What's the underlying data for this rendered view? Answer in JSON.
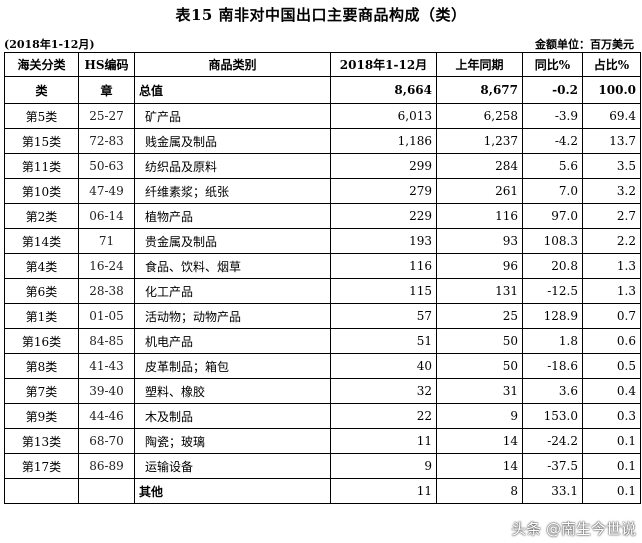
{
  "title": "表15  南非对中国出口主要商品构成（类）",
  "period": "(2018年1-12月)",
  "unit": "金额单位：百万美元",
  "headers": [
    "海关分类",
    "HS编码",
    "商品类别",
    "2018年1-12月",
    "上年同期",
    "同比%",
    "占比%"
  ],
  "subheaders": [
    "类",
    "章",
    "总值",
    "8,664",
    "8,677",
    "-0.2",
    "100.0"
  ],
  "rows": [
    [
      "第5类",
      "25-27",
      "矿产品",
      "6,013",
      "6,258",
      "-3.9",
      "69.4"
    ],
    [
      "第15类",
      "72-83",
      "贱金属及制品",
      "1,186",
      "1,237",
      "-4.2",
      "13.7"
    ],
    [
      "第11类",
      "50-63",
      "纺织品及原料",
      "299",
      "284",
      "5.6",
      "3.5"
    ],
    [
      "第10类",
      "47-49",
      "纤维素浆；纸张",
      "279",
      "261",
      "7.0",
      "3.2"
    ],
    [
      "第2类",
      "06-14",
      "植物产品",
      "229",
      "116",
      "97.0",
      "2.7"
    ],
    [
      "第14类",
      "71",
      "贵金属及制品",
      "193",
      "93",
      "108.3",
      "2.2"
    ],
    [
      "第4类",
      "16-24",
      "食品、饮料、烟草",
      "116",
      "96",
      "20.8",
      "1.3"
    ],
    [
      "第6类",
      "28-38",
      "化工产品",
      "115",
      "131",
      "-12.5",
      "1.3"
    ],
    [
      "第1类",
      "01-05",
      "活动物；动物产品",
      "57",
      "25",
      "128.9",
      "0.7"
    ],
    [
      "第16类",
      "84-85",
      "机电产品",
      "51",
      "50",
      "1.8",
      "0.6"
    ],
    [
      "第8类",
      "41-43",
      "皮革制品；箱包",
      "40",
      "50",
      "-18.6",
      "0.5"
    ],
    [
      "第7类",
      "39-40",
      "塑料、橡胶",
      "32",
      "31",
      "3.6",
      "0.4"
    ],
    [
      "第9类",
      "44-46",
      "木及制品",
      "22",
      "9",
      "153.0",
      "0.3"
    ],
    [
      "第13类",
      "68-70",
      "陶瓷；玻璃",
      "11",
      "14",
      "-24.2",
      "0.1"
    ],
    [
      "第17类",
      "86-89",
      "运输设备",
      "9",
      "14",
      "-37.5",
      "0.1"
    ],
    [
      "",
      "",
      "其他",
      "11",
      "8",
      "33.1",
      "0.1"
    ]
  ],
  "watermark": "头条 @南生今世说"
}
